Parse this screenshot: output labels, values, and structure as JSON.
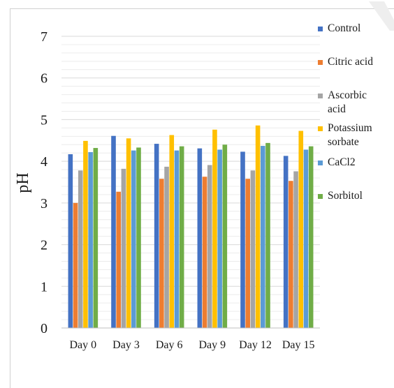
{
  "chart_data": {
    "type": "bar",
    "ylabel": "pH",
    "xlabel": "",
    "ylim": [
      0,
      7
    ],
    "yticks": [
      0,
      1,
      2,
      3,
      4,
      5,
      6,
      7
    ],
    "grid": "horizontal minor",
    "legend_position": "right",
    "categories": [
      "Day 0",
      "Day 3",
      "Day 6",
      "Day 9",
      "Day 12",
      "Day 15"
    ],
    "series": [
      {
        "name": "Control",
        "color": "#4472C4",
        "values": [
          4.17,
          4.61,
          4.42,
          4.31,
          4.23,
          4.13
        ]
      },
      {
        "name": "Citric acid",
        "color": "#ED7D31",
        "values": [
          3.0,
          3.27,
          3.58,
          3.63,
          3.58,
          3.53
        ]
      },
      {
        "name": "Ascorbic acid",
        "color": "#A5A5A5",
        "values": [
          3.78,
          3.82,
          3.87,
          3.91,
          3.78,
          3.76
        ]
      },
      {
        "name": "Potassium sorbate",
        "color": "#FFC000",
        "values": [
          4.49,
          4.55,
          4.63,
          4.76,
          4.86,
          4.73
        ]
      },
      {
        "name": "CaCl2",
        "color": "#5B9BD5",
        "values": [
          4.22,
          4.26,
          4.26,
          4.28,
          4.37,
          4.28
        ]
      },
      {
        "name": "Sorbitol",
        "color": "#70AD47",
        "values": [
          4.32,
          4.33,
          4.36,
          4.4,
          4.44,
          4.36
        ]
      }
    ]
  }
}
